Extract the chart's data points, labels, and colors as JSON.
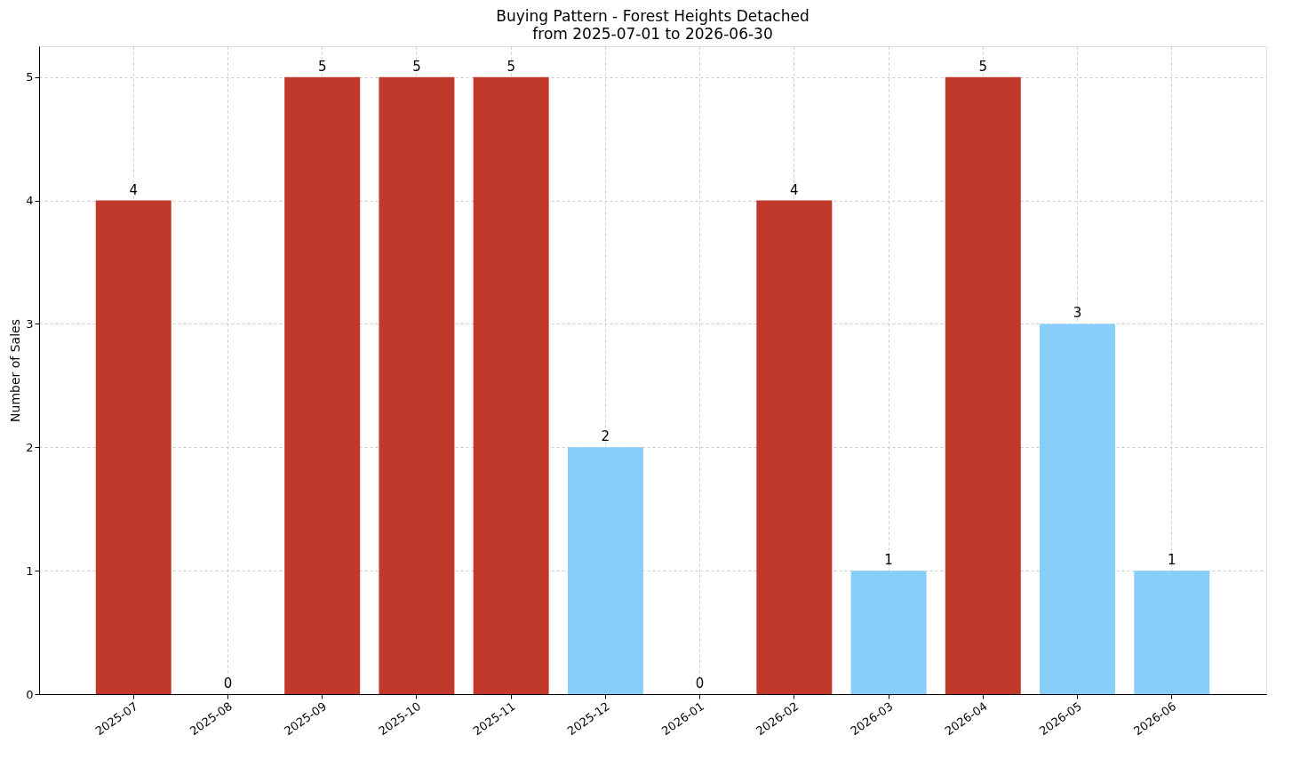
{
  "chart_data": {
    "type": "bar",
    "title": "Buying Pattern - Forest Heights Detached",
    "subtitle": "from 2025-07-01 to 2026-06-30",
    "ylabel": "Number of Sales",
    "categories": [
      "2025-07",
      "2025-08",
      "2025-09",
      "2025-10",
      "2025-11",
      "2025-12",
      "2026-01",
      "2026-02",
      "2026-03",
      "2026-04",
      "2026-05",
      "2026-06"
    ],
    "values": [
      4,
      0,
      5,
      5,
      5,
      2,
      0,
      4,
      1,
      5,
      3,
      1
    ],
    "colors": [
      "#c0392b",
      "#c0392b",
      "#c0392b",
      "#c0392b",
      "#c0392b",
      "#87cefa",
      "#c0392b",
      "#c0392b",
      "#87cefa",
      "#c0392b",
      "#87cefa",
      "#87cefa"
    ],
    "ylim": [
      0,
      5.25
    ],
    "yticks": [
      0,
      1,
      2,
      3,
      4,
      5
    ],
    "grid": true,
    "data_labels": true
  }
}
